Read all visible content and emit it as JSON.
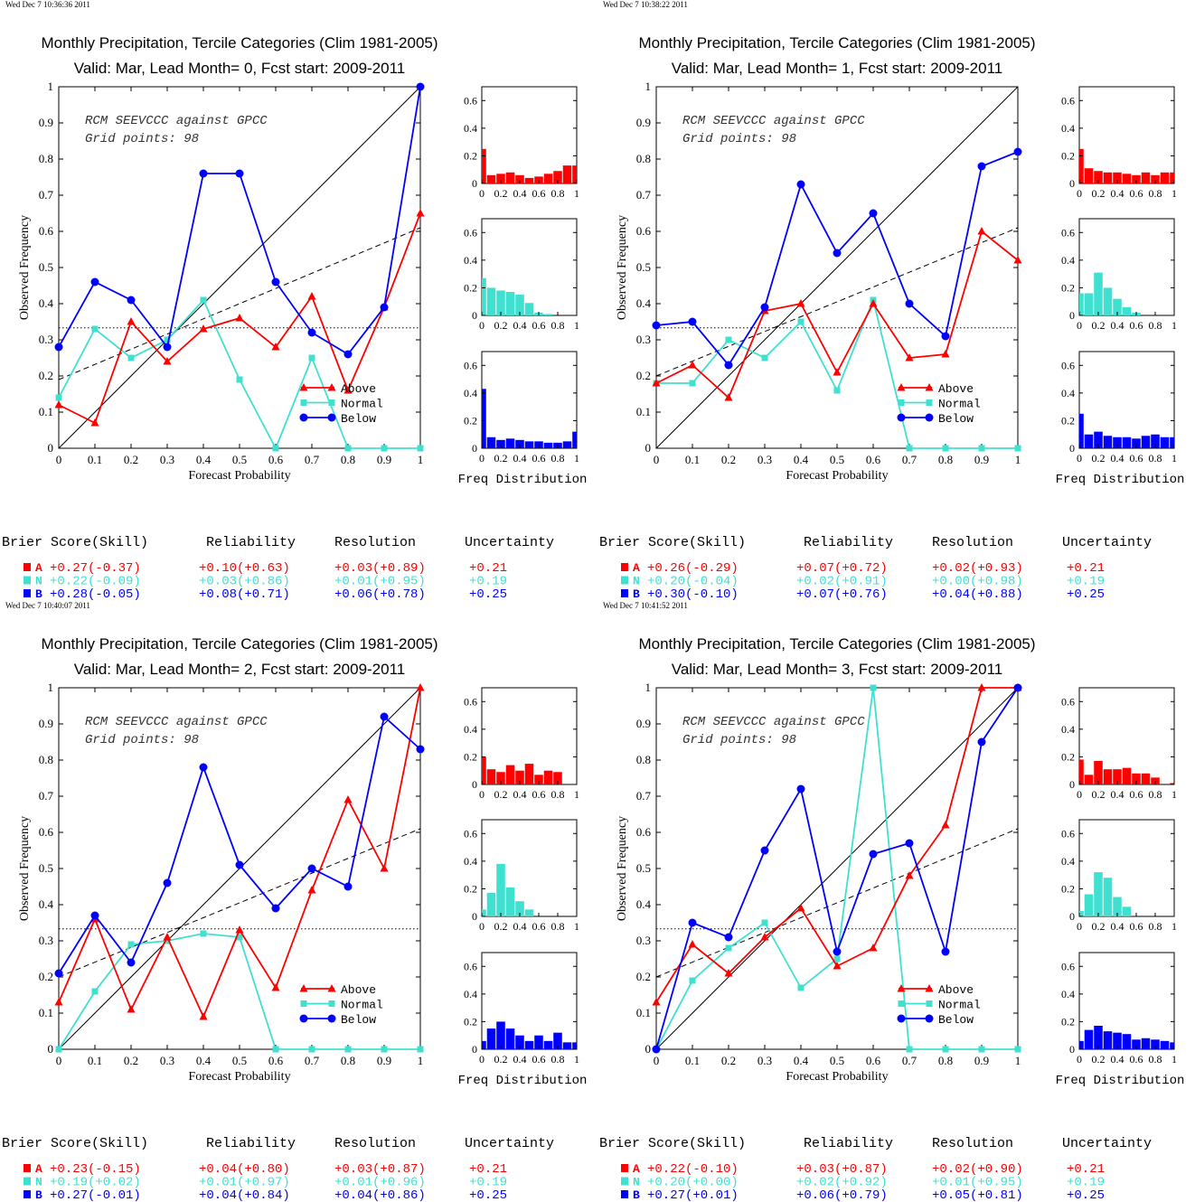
{
  "colors": {
    "above": "#ff0000",
    "normal": "#40e0d0",
    "below": "#0000ff",
    "axis": "#000000"
  },
  "common": {
    "title_line1": "Monthly Precipitation, Tercile Categories (Clim 1981-2005)",
    "xlabel": "Forecast Probability",
    "ylabel": "Observed Frequency",
    "annotation_line1": "RCM SEEVCCC against GPCC",
    "annotation_line2": "Grid points:    98",
    "hist_label": "Freq Distribution",
    "legend": {
      "above": "Above",
      "normal": "Normal",
      "below": "Below"
    },
    "score_headers": [
      "Brier Score(Skill)",
      "Reliability",
      "Resolution",
      "Uncertainty"
    ],
    "score_markers": [
      "A",
      "N",
      "B"
    ],
    "x_ticks": [
      "0",
      "0.1",
      "0.2",
      "0.3",
      "0.4",
      "0.5",
      "0.6",
      "0.7",
      "0.8",
      "0.9",
      "1"
    ],
    "y_ticks": [
      "0",
      "0.1",
      "0.2",
      "0.3",
      "0.4",
      "0.5",
      "0.6",
      "0.7",
      "0.8",
      "0.9",
      "1"
    ],
    "hist_x_ticks": [
      "0",
      "0.2",
      "0.4",
      "0.6",
      "0.8",
      "1"
    ],
    "hist_y_ticks": [
      "0",
      "0.2",
      "0.4",
      "0.6"
    ]
  },
  "chart_data": [
    {
      "type": "line",
      "timestamp": "Wed Dec  7 10:36:36 2011",
      "title_line2": "Valid: Mar, Lead Month= 0, Fcst start: 2009-2011",
      "xlim": [
        0,
        1
      ],
      "ylim": [
        0,
        1
      ],
      "x": [
        0,
        0.1,
        0.2,
        0.3,
        0.4,
        0.5,
        0.6,
        0.7,
        0.8,
        0.9,
        1
      ],
      "series": [
        {
          "name": "Above",
          "values": [
            0.12,
            0.07,
            0.35,
            0.24,
            0.33,
            0.36,
            0.28,
            0.42,
            0.16,
            0.39,
            0.65
          ]
        },
        {
          "name": "Normal",
          "values": [
            0.14,
            0.33,
            0.25,
            0.3,
            0.41,
            0.19,
            0.0,
            0.25,
            0.0,
            0.0,
            0.0
          ]
        },
        {
          "name": "Below",
          "values": [
            0.28,
            0.46,
            0.41,
            0.28,
            0.76,
            0.76,
            0.46,
            0.32,
            0.26,
            0.39,
            1.0
          ]
        }
      ],
      "climatology": 0.333,
      "regression_line": [
        [
          0,
          0.19
        ],
        [
          1,
          0.61
        ]
      ],
      "histograms": {
        "bins": [
          0.0,
          0.1,
          0.2,
          0.3,
          0.4,
          0.5,
          0.6,
          0.7,
          0.8,
          0.9
        ],
        "xlim": [
          0,
          1
        ],
        "ylim": [
          0,
          0.7
        ],
        "above": [
          0.25,
          0.06,
          0.07,
          0.08,
          0.06,
          0.04,
          0.05,
          0.07,
          0.09,
          0.13,
          0.13
        ],
        "normal": [
          0.27,
          0.2,
          0.18,
          0.17,
          0.15,
          0.09,
          0.02,
          0.01,
          0.0,
          0.0,
          0.0
        ],
        "below": [
          0.43,
          0.08,
          0.06,
          0.07,
          0.06,
          0.05,
          0.05,
          0.04,
          0.04,
          0.05,
          0.12
        ]
      },
      "scores": {
        "A": {
          "brier": "+0.27(-0.37)",
          "reliability": "+0.10(+0.63)",
          "resolution": "+0.03(+0.89)",
          "uncertainty": "+0.21"
        },
        "N": {
          "brier": "+0.22(-0.09)",
          "reliability": "+0.03(+0.86)",
          "resolution": "+0.01(+0.95)",
          "uncertainty": "+0.19"
        },
        "B": {
          "brier": "+0.28(-0.05)",
          "reliability": "+0.08(+0.71)",
          "resolution": "+0.06(+0.78)",
          "uncertainty": "+0.25"
        }
      }
    },
    {
      "type": "line",
      "timestamp": "Wed Dec  7 10:38:22 2011",
      "title_line2": "Valid: Mar, Lead Month= 1, Fcst start: 2009-2011",
      "xlim": [
        0,
        1
      ],
      "ylim": [
        0,
        1
      ],
      "x": [
        0,
        0.1,
        0.2,
        0.3,
        0.4,
        0.5,
        0.6,
        0.7,
        0.8,
        0.9,
        1
      ],
      "series": [
        {
          "name": "Above",
          "values": [
            0.18,
            0.23,
            0.14,
            0.38,
            0.4,
            0.21,
            0.4,
            0.25,
            0.26,
            0.6,
            0.52
          ]
        },
        {
          "name": "Normal",
          "values": [
            0.18,
            0.18,
            0.3,
            0.25,
            0.35,
            0.16,
            0.41,
            0.0,
            0.0,
            0.0,
            0.0
          ]
        },
        {
          "name": "Below",
          "values": [
            0.34,
            0.35,
            0.23,
            0.39,
            0.73,
            0.54,
            0.65,
            0.4,
            0.31,
            0.78,
            0.82
          ]
        }
      ],
      "climatology": 0.333,
      "regression_line": [
        [
          0,
          0.2
        ],
        [
          1,
          0.61
        ]
      ],
      "histograms": {
        "bins": [
          0.0,
          0.1,
          0.2,
          0.3,
          0.4,
          0.5,
          0.6,
          0.7,
          0.8,
          0.9
        ],
        "xlim": [
          0,
          1
        ],
        "ylim": [
          0,
          0.7
        ],
        "above": [
          0.25,
          0.11,
          0.09,
          0.08,
          0.08,
          0.07,
          0.06,
          0.08,
          0.06,
          0.08,
          0.08
        ],
        "normal": [
          0.16,
          0.16,
          0.31,
          0.2,
          0.12,
          0.06,
          0.02,
          0.0,
          0.0,
          0.0,
          0.0
        ],
        "below": [
          0.25,
          0.1,
          0.12,
          0.09,
          0.08,
          0.08,
          0.07,
          0.09,
          0.1,
          0.08,
          0.08
        ]
      },
      "scores": {
        "A": {
          "brier": "+0.26(-0.29)",
          "reliability": "+0.07(+0.72)",
          "resolution": "+0.02(+0.93)",
          "uncertainty": "+0.21"
        },
        "N": {
          "brier": "+0.20(-0.04)",
          "reliability": "+0.02(+0.91)",
          "resolution": "+0.00(+0.98)",
          "uncertainty": "+0.19"
        },
        "B": {
          "brier": "+0.30(-0.10)",
          "reliability": "+0.07(+0.76)",
          "resolution": "+0.04(+0.88)",
          "uncertainty": "+0.25"
        }
      }
    },
    {
      "type": "line",
      "timestamp": "Wed Dec  7 10:40:07 2011",
      "title_line2": "Valid: Mar, Lead Month= 2, Fcst start: 2009-2011",
      "xlim": [
        0,
        1
      ],
      "ylim": [
        0,
        1
      ],
      "x": [
        0,
        0.1,
        0.2,
        0.3,
        0.4,
        0.5,
        0.6,
        0.7,
        0.8,
        0.9,
        1
      ],
      "series": [
        {
          "name": "Above",
          "values": [
            0.13,
            0.36,
            0.11,
            0.31,
            0.09,
            0.33,
            0.17,
            0.44,
            0.69,
            0.5,
            1.0
          ]
        },
        {
          "name": "Normal",
          "values": [
            0.0,
            0.16,
            0.29,
            0.3,
            0.32,
            0.31,
            0.0,
            0.0,
            0.0,
            0.0,
            0.0
          ]
        },
        {
          "name": "Below",
          "values": [
            0.21,
            0.37,
            0.24,
            0.46,
            0.78,
            0.51,
            0.39,
            0.5,
            0.45,
            0.92,
            0.83
          ]
        }
      ],
      "climatology": 0.333,
      "regression_line": [
        [
          0,
          0.2
        ],
        [
          1,
          0.61
        ]
      ],
      "histograms": {
        "bins": [
          0.0,
          0.1,
          0.2,
          0.3,
          0.4,
          0.5,
          0.6,
          0.7,
          0.8,
          0.9
        ],
        "xlim": [
          0,
          1
        ],
        "ylim": [
          0,
          0.7
        ],
        "above": [
          0.2,
          0.11,
          0.09,
          0.14,
          0.1,
          0.15,
          0.07,
          0.1,
          0.09,
          0.0,
          0.0
        ],
        "normal": [
          0.05,
          0.17,
          0.38,
          0.21,
          0.11,
          0.05,
          0.0,
          0.0,
          0.0,
          0.0,
          0.0
        ],
        "below": [
          0.06,
          0.15,
          0.2,
          0.15,
          0.1,
          0.06,
          0.1,
          0.06,
          0.12,
          0.05,
          0.05
        ]
      },
      "scores": {
        "A": {
          "brier": "+0.23(-0.15)",
          "reliability": "+0.04(+0.80)",
          "resolution": "+0.03(+0.87)",
          "uncertainty": "+0.21"
        },
        "N": {
          "brier": "+0.19(+0.02)",
          "reliability": "+0.01(+0.97)",
          "resolution": "+0.01(+0.96)",
          "uncertainty": "+0.19"
        },
        "B": {
          "brier": "+0.27(-0.01)",
          "reliability": "+0.04(+0.84)",
          "resolution": "+0.04(+0.86)",
          "uncertainty": "+0.25"
        }
      }
    },
    {
      "type": "line",
      "timestamp": "Wed Dec  7 10:41:52 2011",
      "title_line2": "Valid: Mar, Lead Month= 3, Fcst start: 2009-2011",
      "xlim": [
        0,
        1
      ],
      "ylim": [
        0,
        1
      ],
      "x": [
        0,
        0.1,
        0.2,
        0.3,
        0.4,
        0.5,
        0.6,
        0.7,
        0.8,
        0.9,
        1
      ],
      "series": [
        {
          "name": "Above",
          "values": [
            0.13,
            0.29,
            0.21,
            0.31,
            0.39,
            0.23,
            0.28,
            0.48,
            0.62,
            1.0,
            1.0
          ]
        },
        {
          "name": "Normal",
          "values": [
            0.0,
            0.19,
            0.28,
            0.35,
            0.17,
            0.25,
            1.0,
            0.0,
            0.0,
            0.0,
            0.0
          ]
        },
        {
          "name": "Below",
          "values": [
            0.0,
            0.35,
            0.31,
            0.55,
            0.72,
            0.27,
            0.54,
            0.57,
            0.27,
            0.85,
            1.0
          ]
        }
      ],
      "climatology": 0.333,
      "regression_line": [
        [
          0,
          0.2
        ],
        [
          1,
          0.61
        ]
      ],
      "histograms": {
        "bins": [
          0.0,
          0.1,
          0.2,
          0.3,
          0.4,
          0.5,
          0.6,
          0.7,
          0.8,
          0.9
        ],
        "xlim": [
          0,
          1
        ],
        "ylim": [
          0,
          0.7
        ],
        "above": [
          0.18,
          0.07,
          0.17,
          0.11,
          0.11,
          0.12,
          0.08,
          0.08,
          0.05,
          0.0,
          0.01
        ],
        "normal": [
          0.04,
          0.16,
          0.32,
          0.28,
          0.14,
          0.07,
          0.0,
          0.0,
          0.0,
          0.0,
          0.0
        ],
        "below": [
          0.06,
          0.14,
          0.17,
          0.13,
          0.12,
          0.11,
          0.07,
          0.08,
          0.07,
          0.06,
          0.05
        ]
      },
      "scores": {
        "A": {
          "brier": "+0.22(-0.10)",
          "reliability": "+0.03(+0.87)",
          "resolution": "+0.02(+0.90)",
          "uncertainty": "+0.21"
        },
        "N": {
          "brier": "+0.20(+0.00)",
          "reliability": "+0.02(+0.92)",
          "resolution": "+0.01(+0.95)",
          "uncertainty": "+0.19"
        },
        "B": {
          "brier": "+0.27(+0.01)",
          "reliability": "+0.06(+0.79)",
          "resolution": "+0.05(+0.81)",
          "uncertainty": "+0.25"
        }
      }
    }
  ]
}
